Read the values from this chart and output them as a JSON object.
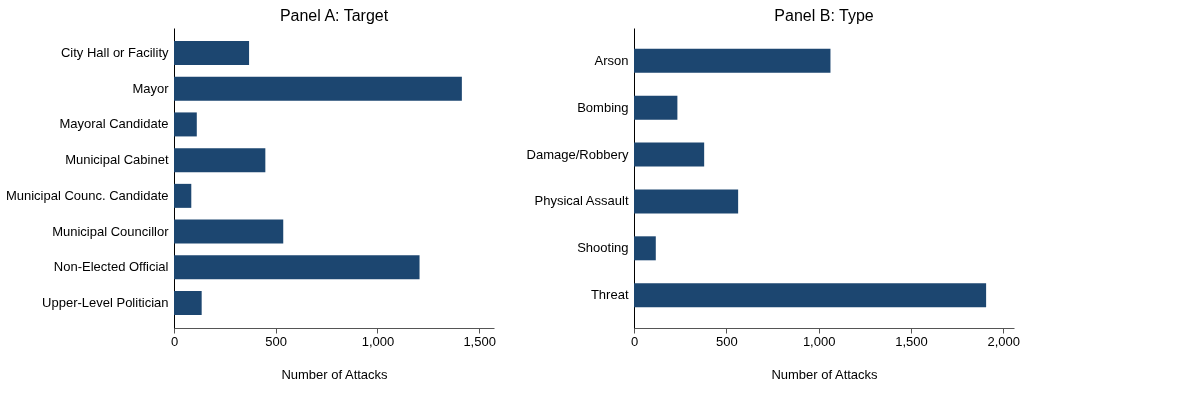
{
  "chart_data": [
    {
      "type": "bar",
      "orientation": "horizontal",
      "title": "Panel A: Target",
      "xlabel": "Number of Attacks",
      "categories": [
        "City Hall or Facility",
        "Mayor",
        "Mayoral Candidate",
        "Municipal Cabinet",
        "Municipal Counc. Candidate",
        "Municipal Councillor",
        "Non-Elected Official",
        "Upper-Level Politician"
      ],
      "values": [
        369,
        1415,
        112,
        449,
        85,
        537,
        1207,
        136
      ],
      "color": "#1c4670",
      "xlim": [
        0,
        1573
      ],
      "xticks": [
        0,
        500,
        {
          "value": 1000,
          "label": "1,000"
        },
        {
          "value": 1500,
          "label": "1,500"
        }
      ],
      "grid": false
    },
    {
      "type": "bar",
      "orientation": "horizontal",
      "title": "Panel B: Type",
      "xlabel": "Number of Attacks",
      "categories": [
        "Arson",
        "Bombing",
        "Damage/Robbery",
        "Physical Assault",
        "Shooting",
        "Threat"
      ],
      "values": [
        1064,
        235,
        380,
        564,
        118,
        1907
      ],
      "color": "#1c4670",
      "xlim": [
        0,
        2058
      ],
      "xticks": [
        0,
        500,
        {
          "value": 1000,
          "label": "1,000"
        },
        {
          "value": 1500,
          "label": "1,500"
        },
        {
          "value": 2000,
          "label": "2,000"
        }
      ],
      "grid": false
    }
  ]
}
